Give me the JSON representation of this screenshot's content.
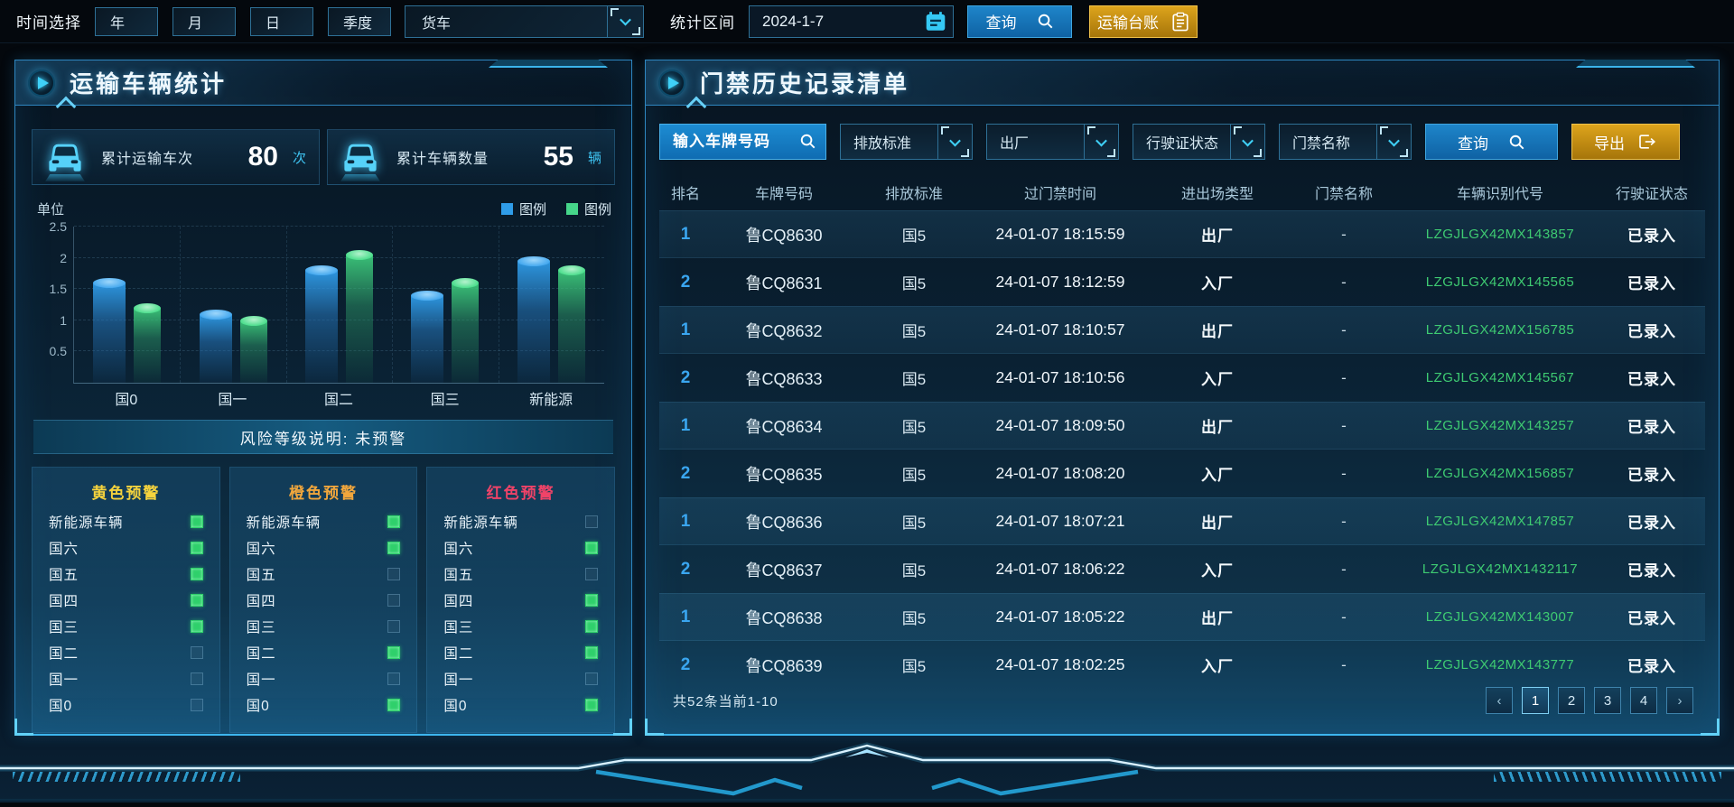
{
  "top_bar": {
    "time_label": "时间选择",
    "period_buttons": [
      "年",
      "月",
      "日",
      "季度"
    ],
    "vehicle_type_value": "货车",
    "range_label": "统计区间",
    "date_value": "2024-1-7",
    "query_button": "查询",
    "ledger_button": "运输台账"
  },
  "left_panel": {
    "title": "运输车辆统计",
    "stats": [
      {
        "label": "累计运输车次",
        "value": "80",
        "unit": "次"
      },
      {
        "label": "累计车辆数量",
        "value": "55",
        "unit": "辆"
      }
    ],
    "risk_banner": "风险等级说明: 未预警",
    "warning_columns": [
      {
        "title": "黄色预警",
        "title_color": "#f5d33d",
        "items": [
          {
            "label": "新能源车辆",
            "checked": true
          },
          {
            "label": "国六",
            "checked": true
          },
          {
            "label": "国五",
            "checked": true
          },
          {
            "label": "国四",
            "checked": true
          },
          {
            "label": "国三",
            "checked": true
          },
          {
            "label": "国二",
            "checked": false
          },
          {
            "label": "国一",
            "checked": false
          },
          {
            "label": "国0",
            "checked": false
          }
        ]
      },
      {
        "title": "橙色预警",
        "title_color": "#f0a63c",
        "items": [
          {
            "label": "新能源车辆",
            "checked": true
          },
          {
            "label": "国六",
            "checked": true
          },
          {
            "label": "国五",
            "checked": false
          },
          {
            "label": "国四",
            "checked": false
          },
          {
            "label": "国三",
            "checked": false
          },
          {
            "label": "国二",
            "checked": true
          },
          {
            "label": "国一",
            "checked": false
          },
          {
            "label": "国0",
            "checked": true
          }
        ]
      },
      {
        "title": "红色预警",
        "title_color": "#f04368",
        "items": [
          {
            "label": "新能源车辆",
            "checked": false
          },
          {
            "label": "国六",
            "checked": true
          },
          {
            "label": "国五",
            "checked": false
          },
          {
            "label": "国四",
            "checked": true
          },
          {
            "label": "国三",
            "checked": true
          },
          {
            "label": "国二",
            "checked": true
          },
          {
            "label": "国一",
            "checked": false
          },
          {
            "label": "国0",
            "checked": true
          }
        ]
      }
    ]
  },
  "chart_data": {
    "type": "bar",
    "title": "",
    "ylabel": "单位",
    "categories": [
      "国0",
      "国一",
      "国二",
      "国三",
      "新能源"
    ],
    "series": [
      {
        "name": "图例",
        "color": "#2f9ce8",
        "values": [
          1.6,
          1.1,
          1.8,
          1.4,
          1.95
        ]
      },
      {
        "name": "图例",
        "color": "#46d68a",
        "values": [
          1.2,
          1.0,
          2.05,
          1.6,
          1.8
        ]
      }
    ],
    "yticks": [
      0.5,
      1,
      1.5,
      2,
      2.5
    ],
    "ylim": [
      0,
      2.5
    ],
    "legend_position": "top-right",
    "grid": "dashed"
  },
  "right_panel": {
    "title": "门禁历史记录清单",
    "filters": {
      "plate_placeholder": "输入车牌号码",
      "selects": [
        "排放标准",
        "出厂",
        "行驶证状态",
        "门禁名称"
      ],
      "query_button": "查询",
      "export_button": "导出"
    },
    "table": {
      "headers": [
        "排名",
        "车牌号码",
        "排放标准",
        "过门禁时间",
        "进出场类型",
        "门禁名称",
        "车辆识别代号",
        "行驶证状态"
      ],
      "rows": [
        [
          "1",
          "鲁CQ8630",
          "国5",
          "24-01-07 18:15:59",
          "出厂",
          "-",
          "LZGJLGX42MX143857",
          "已录入"
        ],
        [
          "2",
          "鲁CQ8631",
          "国5",
          "24-01-07 18:12:59",
          "入厂",
          "-",
          "LZGJLGX42MX145565",
          "已录入"
        ],
        [
          "1",
          "鲁CQ8632",
          "国5",
          "24-01-07 18:10:57",
          "出厂",
          "-",
          "LZGJLGX42MX156785",
          "已录入"
        ],
        [
          "2",
          "鲁CQ8633",
          "国5",
          "24-01-07 18:10:56",
          "入厂",
          "-",
          "LZGJLGX42MX145567",
          "已录入"
        ],
        [
          "1",
          "鲁CQ8634",
          "国5",
          "24-01-07 18:09:50",
          "出厂",
          "-",
          "LZGJLGX42MX143257",
          "已录入"
        ],
        [
          "2",
          "鲁CQ8635",
          "国5",
          "24-01-07 18:08:20",
          "入厂",
          "-",
          "LZGJLGX42MX156857",
          "已录入"
        ],
        [
          "1",
          "鲁CQ8636",
          "国5",
          "24-01-07 18:07:21",
          "出厂",
          "-",
          "LZGJLGX42MX147857",
          "已录入"
        ],
        [
          "2",
          "鲁CQ8637",
          "国5",
          "24-01-07 18:06:22",
          "入厂",
          "-",
          "LZGJLGX42MX1432117",
          "已录入"
        ],
        [
          "1",
          "鲁CQ8638",
          "国5",
          "24-01-07 18:05:22",
          "出厂",
          "-",
          "LZGJLGX42MX143007",
          "已录入"
        ],
        [
          "2",
          "鲁CQ8639",
          "国5",
          "24-01-07 18:02:25",
          "入厂",
          "-",
          "LZGJLGX42MX143777",
          "已录入"
        ]
      ]
    },
    "pagination": {
      "summary": "共52条当前1-10",
      "prev": "‹",
      "next": "›",
      "pages": [
        "1",
        "2",
        "3",
        "4"
      ],
      "current": "1"
    }
  },
  "colors": {
    "accent_blue": "#2196d8",
    "accent_gold": "#d99a16",
    "vin_green": "#3ecb72",
    "rank_blue": "#3aa6f0",
    "indicator_green": "#2fd06b"
  }
}
